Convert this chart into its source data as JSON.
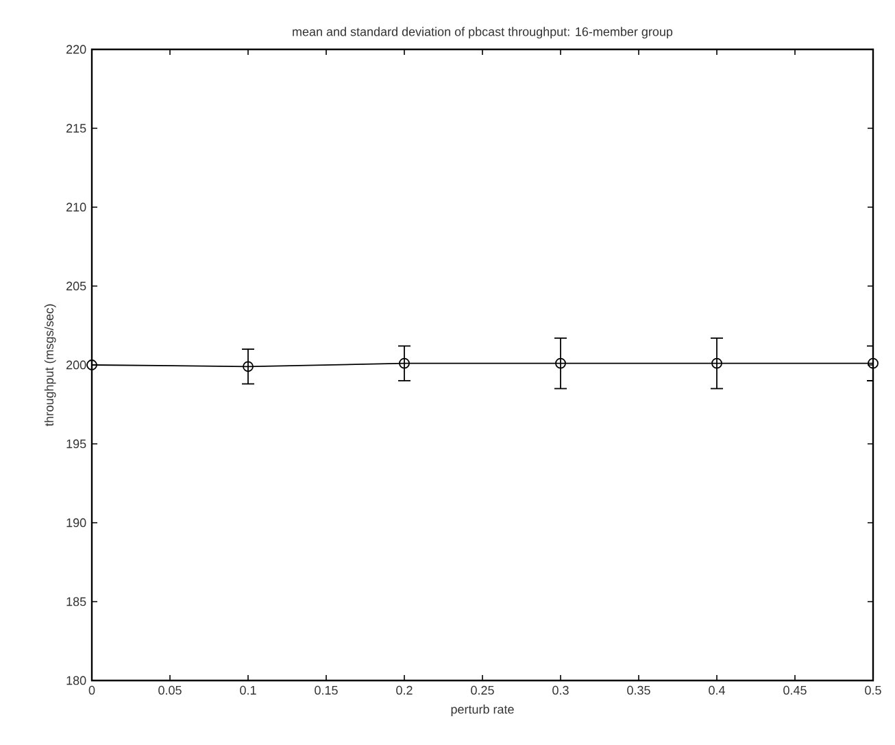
{
  "chart_data": {
    "type": "line",
    "title": "mean and standard deviation of pbcast throughput: 16-member group",
    "xlabel": "perturb rate",
    "ylabel": "throughput (msgs/sec)",
    "x": [
      0,
      0.1,
      0.2,
      0.3,
      0.4,
      0.5
    ],
    "series": [
      {
        "color": "#000000",
        "values": [
          200,
          199.9,
          200.1,
          200.1,
          200.1,
          200.1
        ],
        "errors": [
          null,
          1.1,
          1.1,
          1.6,
          1.6,
          1.1
        ]
      }
    ],
    "xlim": [
      0,
      0.5
    ],
    "ylim": [
      180,
      220
    ],
    "xticks": [
      0,
      0.05,
      0.1,
      0.15,
      0.2,
      0.25,
      0.3,
      0.35,
      0.4,
      0.45,
      0.5
    ],
    "yticks": [
      180,
      185,
      190,
      195,
      200,
      205,
      210,
      215,
      220
    ],
    "marker": "circle",
    "line_style": "solid"
  }
}
